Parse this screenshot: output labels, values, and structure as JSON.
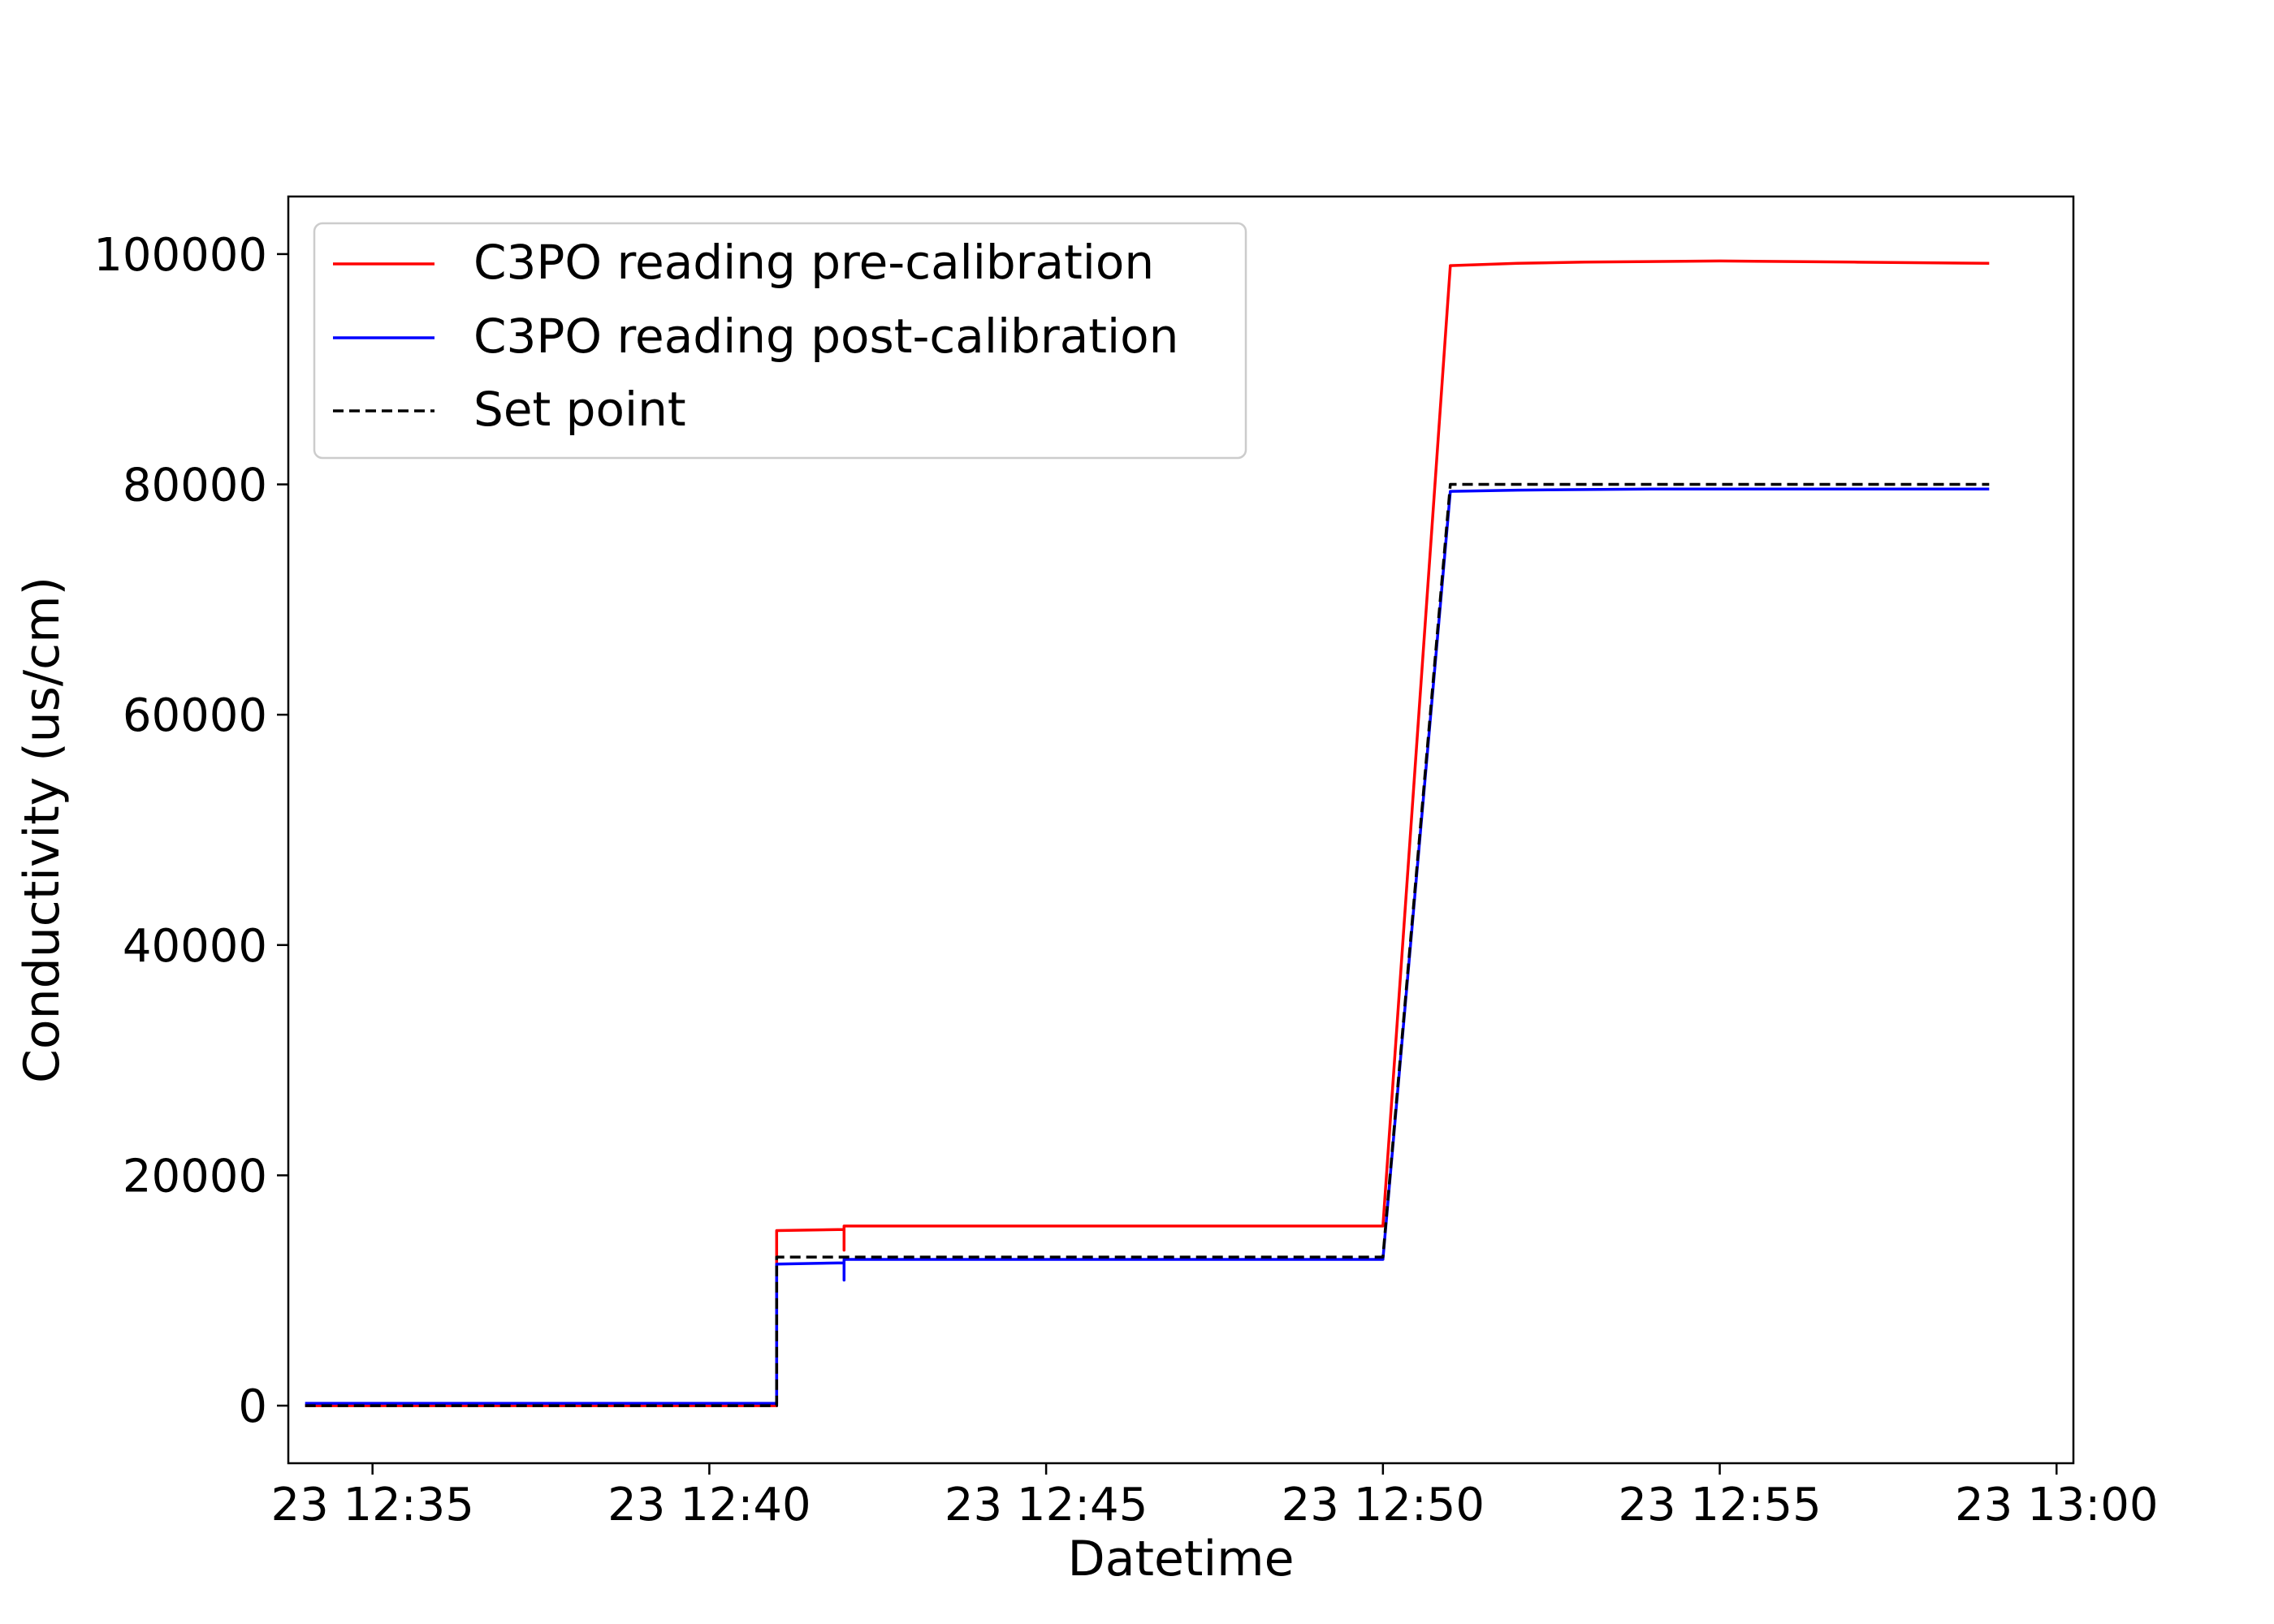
{
  "chart_data": {
    "type": "line",
    "xlabel": "Datetime",
    "ylabel": "Conductivity (us/cm)",
    "x_unit": "minutes",
    "xlim": [
      "12:33:45",
      "13:00:15"
    ],
    "ylim": [
      -5000,
      105000
    ],
    "xticks": [
      {
        "value": "12:35",
        "label": "23 12:35"
      },
      {
        "value": "12:40",
        "label": "23 12:40"
      },
      {
        "value": "12:45",
        "label": "23 12:45"
      },
      {
        "value": "12:50",
        "label": "23 12:50"
      },
      {
        "value": "12:55",
        "label": "23 12:55"
      },
      {
        "value": "13:00",
        "label": "23 13:00"
      }
    ],
    "yticks": [
      0,
      20000,
      40000,
      60000,
      80000,
      100000
    ],
    "ytick_labels": [
      "0",
      "20000",
      "40000",
      "60000",
      "80000",
      "100000"
    ],
    "grid": false,
    "legend_position": "top-left",
    "series": [
      {
        "name": "C3PO reading pre-calibration",
        "color": "#ff0000",
        "dash": "solid",
        "points": [
          [
            "12:34:00",
            0
          ],
          [
            "12:41:00",
            0
          ],
          [
            "12:41:00",
            15200
          ],
          [
            "12:42:00",
            15300
          ],
          [
            "12:42:00",
            13500
          ],
          [
            "12:42:00",
            15600
          ],
          [
            "12:50:00",
            15600
          ],
          [
            "12:51:00",
            99000
          ],
          [
            "12:52:00",
            99200
          ],
          [
            "12:53:00",
            99300
          ],
          [
            "12:55:00",
            99400
          ],
          [
            "12:57:00",
            99300
          ],
          [
            "12:59:00",
            99200
          ]
        ]
      },
      {
        "name": "C3PO reading post-calibration",
        "color": "#0000ff",
        "dash": "solid",
        "points": [
          [
            "12:34:00",
            200
          ],
          [
            "12:41:00",
            200
          ],
          [
            "12:41:00",
            12300
          ],
          [
            "12:42:00",
            12400
          ],
          [
            "12:42:00",
            10900
          ],
          [
            "12:42:00",
            12700
          ],
          [
            "12:50:00",
            12700
          ],
          [
            "12:51:00",
            79400
          ],
          [
            "12:52:00",
            79500
          ],
          [
            "12:54:00",
            79600
          ],
          [
            "12:59:00",
            79600
          ]
        ]
      },
      {
        "name": "Set point",
        "color": "#000000",
        "dash": "dashed",
        "points": [
          [
            "12:34:00",
            0
          ],
          [
            "12:41:00",
            0
          ],
          [
            "12:41:00",
            12900
          ],
          [
            "12:50:00",
            12900
          ],
          [
            "12:51:00",
            80000
          ],
          [
            "12:59:00",
            80000
          ]
        ]
      }
    ]
  }
}
